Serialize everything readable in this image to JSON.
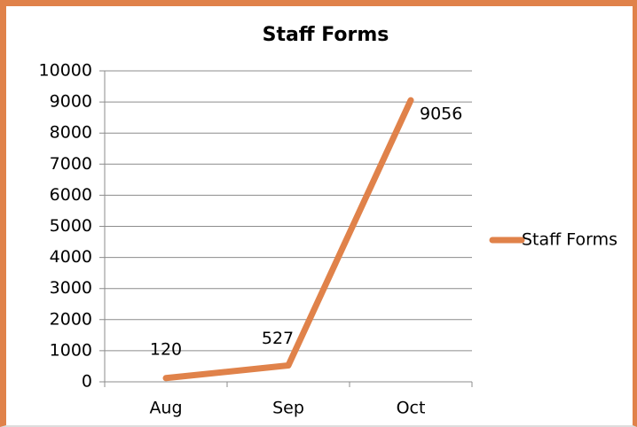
{
  "chart_data": {
    "type": "line",
    "title": "Staff Forms",
    "categories": [
      "Aug",
      "Sep",
      "Oct"
    ],
    "series": [
      {
        "name": "Staff Forms",
        "color": "#e0824a",
        "values": [
          120,
          527,
          9056
        ]
      }
    ],
    "ylim": [
      0,
      10000
    ],
    "yticks": [
      0,
      1000,
      2000,
      3000,
      4000,
      5000,
      6000,
      7000,
      8000,
      9000,
      10000
    ],
    "grid": true,
    "legend": "right",
    "data_labels": true
  }
}
